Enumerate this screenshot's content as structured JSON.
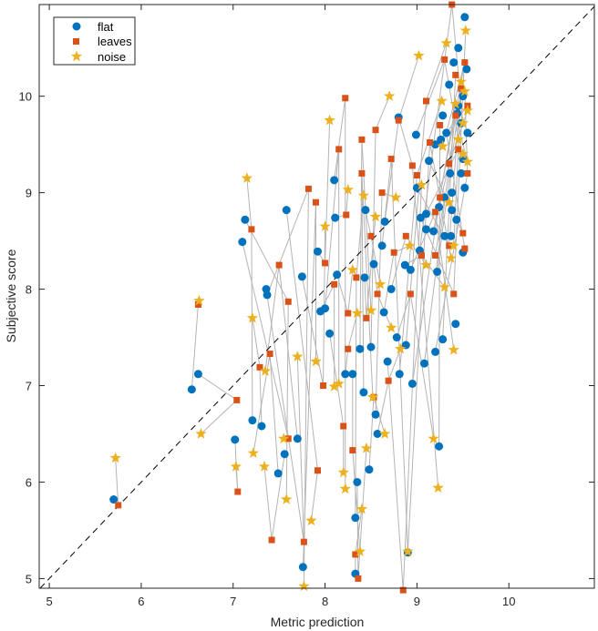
{
  "chart_data": {
    "type": "scatter",
    "title": "",
    "xlabel": "Metric prediction",
    "ylabel": "Subjective score",
    "xlim": [
      4.89,
      10.93
    ],
    "ylim": [
      4.9,
      10.95
    ],
    "xticks": [
      "5",
      "6",
      "7",
      "8",
      "9",
      "10"
    ],
    "yticks": [
      "5",
      "6",
      "7",
      "8",
      "9",
      "10"
    ],
    "grid": false,
    "legend_position": "top-left",
    "reference_line": {
      "type": "y=x",
      "style": "dashed",
      "color": "#000000"
    },
    "connector_color": "#b4b4b4",
    "series": [
      {
        "name": "flat",
        "marker": "circle",
        "color": "#0072BD",
        "points": [
          [
            5.7,
            5.82
          ],
          [
            6.55,
            6.96
          ],
          [
            6.62,
            7.12
          ],
          [
            7.02,
            6.44
          ],
          [
            7.21,
            6.64
          ],
          [
            7.31,
            6.58
          ],
          [
            7.49,
            6.09
          ],
          [
            7.56,
            6.29
          ],
          [
            7.7,
            6.45
          ],
          [
            7.1,
            8.49
          ],
          [
            7.13,
            8.72
          ],
          [
            7.36,
            8.0
          ],
          [
            7.37,
            7.94
          ],
          [
            7.58,
            8.82
          ],
          [
            7.76,
            5.12
          ],
          [
            7.75,
            8.13
          ],
          [
            7.92,
            8.39
          ],
          [
            7.95,
            7.77
          ],
          [
            8.0,
            7.8
          ],
          [
            8.05,
            7.54
          ],
          [
            8.1,
            9.13
          ],
          [
            8.11,
            8.74
          ],
          [
            8.13,
            8.15
          ],
          [
            8.22,
            7.12
          ],
          [
            8.3,
            7.12
          ],
          [
            8.33,
            5.05
          ],
          [
            8.33,
            5.63
          ],
          [
            8.35,
            6.0
          ],
          [
            8.38,
            7.38
          ],
          [
            8.42,
            6.93
          ],
          [
            8.43,
            8.12
          ],
          [
            8.44,
            8.82
          ],
          [
            8.48,
            6.13
          ],
          [
            8.5,
            7.4
          ],
          [
            8.53,
            8.26
          ],
          [
            8.55,
            6.7
          ],
          [
            8.57,
            6.5
          ],
          [
            8.62,
            8.45
          ],
          [
            8.64,
            7.76
          ],
          [
            8.65,
            8.7
          ],
          [
            8.68,
            7.25
          ],
          [
            8.72,
            8.0
          ],
          [
            8.78,
            7.5
          ],
          [
            8.8,
            9.78
          ],
          [
            8.81,
            7.12
          ],
          [
            8.87,
            8.25
          ],
          [
            8.88,
            7.42
          ],
          [
            8.9,
            5.27
          ],
          [
            8.93,
            8.2
          ],
          [
            8.95,
            7.02
          ],
          [
            8.99,
            9.6
          ],
          [
            9.0,
            9.05
          ],
          [
            9.03,
            8.4
          ],
          [
            9.04,
            8.74
          ],
          [
            9.08,
            7.23
          ],
          [
            9.1,
            8.78
          ],
          [
            9.13,
            9.33
          ],
          [
            9.18,
            8.6
          ],
          [
            9.2,
            7.35
          ],
          [
            9.22,
            8.18
          ],
          [
            9.24,
            8.85
          ],
          [
            9.24,
            6.37
          ],
          [
            9.26,
            9.55
          ],
          [
            9.28,
            7.48
          ],
          [
            9.3,
            8.95
          ],
          [
            9.32,
            9.62
          ],
          [
            9.35,
            10.12
          ],
          [
            9.37,
            8.55
          ],
          [
            9.38,
            9.0
          ],
          [
            9.4,
            10.35
          ],
          [
            9.42,
            7.64
          ],
          [
            9.44,
            9.82
          ],
          [
            9.45,
            10.5
          ],
          [
            9.48,
            9.2
          ],
          [
            9.5,
            10.0
          ],
          [
            9.52,
            10.82
          ],
          [
            9.52,
            9.05
          ],
          [
            9.55,
            9.62
          ],
          [
            9.5,
            8.38
          ],
          [
            9.48,
            9.72
          ],
          [
            9.36,
            9.2
          ],
          [
            9.43,
            8.72
          ],
          [
            9.28,
            9.8
          ],
          [
            9.45,
            9.9
          ],
          [
            9.54,
            10.28
          ],
          [
            9.3,
            8.55
          ],
          [
            9.38,
            8.82
          ],
          [
            9.2,
            9.5
          ],
          [
            9.1,
            8.62
          ],
          [
            9.5,
            9.35
          ]
        ]
      },
      {
        "name": "leaves",
        "marker": "square",
        "color": "#D95319",
        "points": [
          [
            5.75,
            5.76
          ],
          [
            6.62,
            7.84
          ],
          [
            7.04,
            6.85
          ],
          [
            7.05,
            5.9
          ],
          [
            7.2,
            8.62
          ],
          [
            7.29,
            7.19
          ],
          [
            7.4,
            7.33
          ],
          [
            7.42,
            5.4
          ],
          [
            7.5,
            8.25
          ],
          [
            7.6,
            6.45
          ],
          [
            7.6,
            7.87
          ],
          [
            7.77,
            5.38
          ],
          [
            7.82,
            9.04
          ],
          [
            7.92,
            6.12
          ],
          [
            7.9,
            8.9
          ],
          [
            7.98,
            7.0
          ],
          [
            8.0,
            8.27
          ],
          [
            8.1,
            8.05
          ],
          [
            8.15,
            9.45
          ],
          [
            8.2,
            6.58
          ],
          [
            8.22,
            9.98
          ],
          [
            8.23,
            8.77
          ],
          [
            8.25,
            7.75
          ],
          [
            8.25,
            7.38
          ],
          [
            8.3,
            6.33
          ],
          [
            8.33,
            5.25
          ],
          [
            8.34,
            8.12
          ],
          [
            8.36,
            5.0
          ],
          [
            8.4,
            9.55
          ],
          [
            8.4,
            9.2
          ],
          [
            8.45,
            7.7
          ],
          [
            8.5,
            8.55
          ],
          [
            8.53,
            6.88
          ],
          [
            8.55,
            9.65
          ],
          [
            8.57,
            7.95
          ],
          [
            8.62,
            9.0
          ],
          [
            8.69,
            7.05
          ],
          [
            8.72,
            9.35
          ],
          [
            8.75,
            8.38
          ],
          [
            8.8,
            9.75
          ],
          [
            8.85,
            4.88
          ],
          [
            8.88,
            8.55
          ],
          [
            8.93,
            7.95
          ],
          [
            8.95,
            9.28
          ],
          [
            9.0,
            9.18
          ],
          [
            9.05,
            8.35
          ],
          [
            9.1,
            9.95
          ],
          [
            9.14,
            9.52
          ],
          [
            9.2,
            8.8
          ],
          [
            9.25,
            8.95
          ],
          [
            9.3,
            10.38
          ],
          [
            9.35,
            8.45
          ],
          [
            9.38,
            10.95
          ],
          [
            9.4,
            7.95
          ],
          [
            9.42,
            9.8
          ],
          [
            9.45,
            9.45
          ],
          [
            9.5,
            8.58
          ],
          [
            9.52,
            10.35
          ],
          [
            9.55,
            9.2
          ],
          [
            9.48,
            10.08
          ],
          [
            9.35,
            9.3
          ],
          [
            9.25,
            9.7
          ],
          [
            9.55,
            9.9
          ],
          [
            9.42,
            10.22
          ],
          [
            9.2,
            8.35
          ],
          [
            9.52,
            8.42
          ]
        ]
      },
      {
        "name": "noise",
        "marker": "star",
        "color": "#EDB120",
        "points": [
          [
            5.72,
            6.25
          ],
          [
            6.63,
            7.88
          ],
          [
            6.65,
            6.5
          ],
          [
            7.03,
            6.16
          ],
          [
            7.15,
            9.15
          ],
          [
            7.21,
            7.7
          ],
          [
            7.22,
            6.3
          ],
          [
            7.34,
            6.16
          ],
          [
            7.35,
            7.15
          ],
          [
            7.55,
            6.45
          ],
          [
            7.58,
            5.82
          ],
          [
            7.7,
            7.3
          ],
          [
            7.77,
            4.92
          ],
          [
            7.85,
            5.6
          ],
          [
            7.9,
            7.25
          ],
          [
            8.0,
            8.65
          ],
          [
            8.05,
            9.75
          ],
          [
            8.1,
            6.99
          ],
          [
            8.15,
            7.02
          ],
          [
            8.2,
            6.1
          ],
          [
            8.22,
            5.93
          ],
          [
            8.25,
            9.03
          ],
          [
            8.3,
            8.2
          ],
          [
            8.35,
            7.75
          ],
          [
            8.38,
            5.28
          ],
          [
            8.4,
            5.72
          ],
          [
            8.42,
            8.97
          ],
          [
            8.45,
            6.35
          ],
          [
            8.5,
            7.78
          ],
          [
            8.52,
            6.88
          ],
          [
            8.55,
            8.75
          ],
          [
            8.6,
            8.05
          ],
          [
            8.65,
            6.5
          ],
          [
            8.7,
            10.0
          ],
          [
            8.72,
            7.6
          ],
          [
            8.77,
            8.95
          ],
          [
            8.82,
            7.38
          ],
          [
            8.9,
            5.28
          ],
          [
            8.92,
            8.45
          ],
          [
            9.02,
            10.42
          ],
          [
            9.05,
            9.08
          ],
          [
            9.1,
            8.25
          ],
          [
            9.18,
            6.45
          ],
          [
            9.23,
            5.94
          ],
          [
            9.27,
            9.95
          ],
          [
            9.3,
            8.02
          ],
          [
            9.32,
            10.55
          ],
          [
            9.37,
            8.32
          ],
          [
            9.4,
            7.37
          ],
          [
            9.42,
            9.92
          ],
          [
            9.45,
            9.55
          ],
          [
            9.48,
            10.15
          ],
          [
            9.5,
            9.72
          ],
          [
            9.53,
            10.68
          ],
          [
            9.55,
            9.32
          ],
          [
            9.5,
            9.4
          ],
          [
            9.35,
            8.9
          ],
          [
            9.28,
            9.48
          ],
          [
            9.52,
            10.05
          ],
          [
            9.4,
            8.45
          ],
          [
            9.55,
            9.85
          ]
        ]
      }
    ]
  }
}
